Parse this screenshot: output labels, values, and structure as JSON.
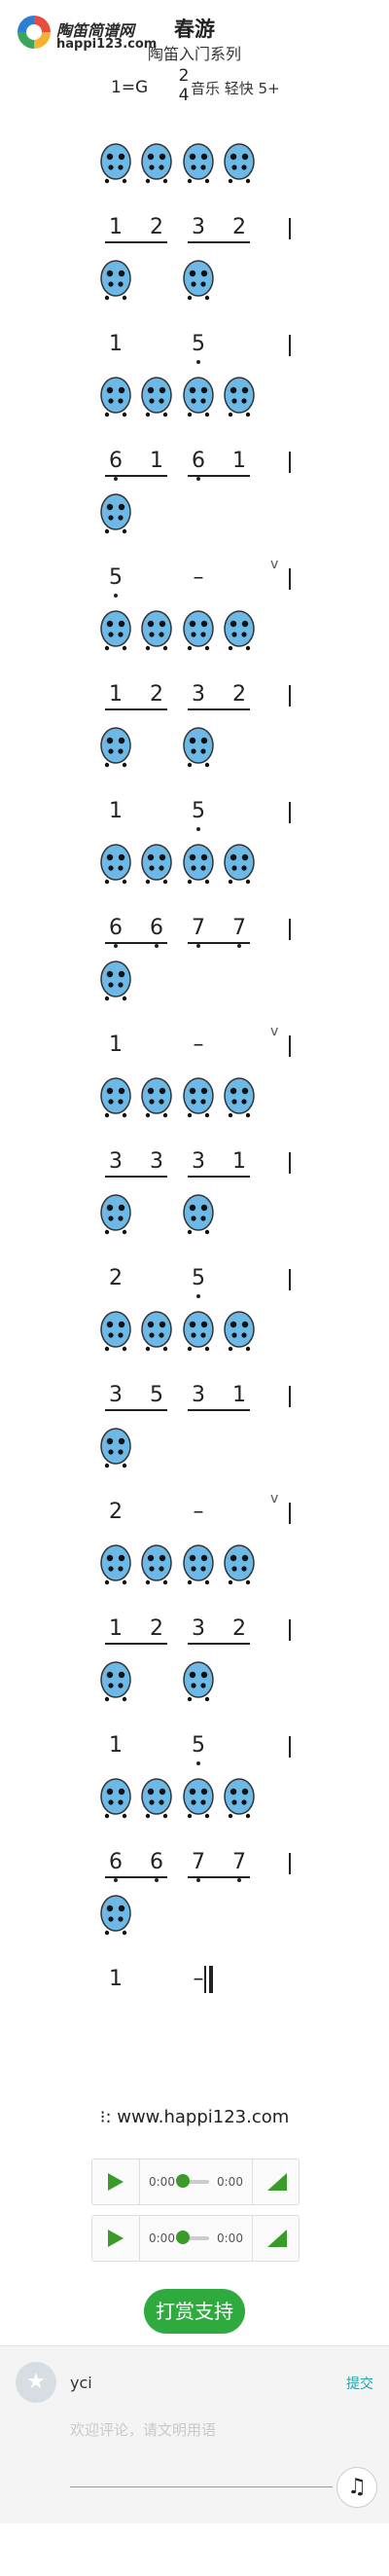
{
  "header": {
    "logo_name": "陶笛简谱网",
    "logo_url": "happi123.com",
    "title": "春游",
    "subtitle": "陶笛入门系列",
    "key": "1=G",
    "meter_top": "2",
    "meter_bottom": "4",
    "tempo": "音乐 轻快 5+"
  },
  "site_text": ": www.happi123.com",
  "players": [
    {
      "time_current": "0:00",
      "time_total": "0:00",
      "progress": 0
    },
    {
      "time_current": "0:00",
      "time_total": "0:00",
      "progress": 0
    }
  ],
  "donate_label": "打赏支持",
  "comment": {
    "user": "yci",
    "submit_label": "提交",
    "placeholder": "欢迎评论，请文明用语"
  },
  "colors": {
    "accent_green": "#2faa3f",
    "ocarina_blue": "#6cb8e6",
    "link_teal": "#2a9fa3"
  },
  "score_rows": [
    {
      "fingerings": 4,
      "notes": [
        "1",
        "2",
        "3",
        "2"
      ],
      "underlines": [
        [
          0,
          1
        ],
        [
          2,
          3
        ]
      ],
      "dots_below": [],
      "barline": "single"
    },
    {
      "fingerings": 2,
      "notes": [
        "1",
        "5"
      ],
      "underlines": [],
      "dots_below": [
        1
      ],
      "barline": "single"
    },
    {
      "fingerings": 4,
      "notes": [
        "6",
        "1",
        "6",
        "1"
      ],
      "underlines": [
        [
          0,
          1
        ],
        [
          2,
          3
        ]
      ],
      "dots_below": [
        0,
        2
      ],
      "barline": "single"
    },
    {
      "fingerings": 1,
      "notes": [
        "5",
        "–"
      ],
      "underlines": [],
      "dots_below": [
        0
      ],
      "barline": "single",
      "breath": "v"
    },
    {
      "fingerings": 4,
      "notes": [
        "1",
        "2",
        "3",
        "2"
      ],
      "underlines": [
        [
          0,
          1
        ],
        [
          2,
          3
        ]
      ],
      "dots_below": [],
      "barline": "single"
    },
    {
      "fingerings": 2,
      "notes": [
        "1",
        "5"
      ],
      "underlines": [],
      "dots_below": [
        1
      ],
      "barline": "single"
    },
    {
      "fingerings": 4,
      "notes": [
        "6",
        "6",
        "7",
        "7"
      ],
      "underlines": [
        [
          0,
          1
        ],
        [
          2,
          3
        ]
      ],
      "dots_below": [
        0,
        1,
        2,
        3
      ],
      "barline": "single"
    },
    {
      "fingerings": 1,
      "notes": [
        "1",
        "–"
      ],
      "underlines": [],
      "dots_below": [],
      "barline": "single",
      "breath": "v"
    },
    {
      "fingerings": 4,
      "notes": [
        "3",
        "3",
        "3",
        "1"
      ],
      "underlines": [
        [
          0,
          1
        ],
        [
          2,
          3
        ]
      ],
      "dots_below": [],
      "barline": "single"
    },
    {
      "fingerings": 2,
      "notes": [
        "2",
        "5"
      ],
      "underlines": [],
      "dots_below": [
        1
      ],
      "barline": "single"
    },
    {
      "fingerings": 4,
      "notes": [
        "3",
        "5",
        "3",
        "1"
      ],
      "underlines": [
        [
          0,
          1
        ],
        [
          2,
          3
        ]
      ],
      "dots_below": [],
      "barline": "single"
    },
    {
      "fingerings": 1,
      "notes": [
        "2",
        "–"
      ],
      "underlines": [],
      "dots_below": [],
      "barline": "single",
      "breath": "v"
    },
    {
      "fingerings": 4,
      "notes": [
        "1",
        "2",
        "3",
        "2"
      ],
      "underlines": [
        [
          0,
          1
        ],
        [
          2,
          3
        ]
      ],
      "dots_below": [],
      "barline": "single"
    },
    {
      "fingerings": 2,
      "notes": [
        "1",
        "5"
      ],
      "underlines": [],
      "dots_below": [
        1
      ],
      "barline": "single"
    },
    {
      "fingerings": 4,
      "notes": [
        "6",
        "6",
        "7",
        "7"
      ],
      "underlines": [
        [
          0,
          1
        ],
        [
          2,
          3
        ]
      ],
      "dots_below": [
        0,
        1,
        2,
        3
      ],
      "barline": "single"
    },
    {
      "fingerings": 1,
      "notes": [
        "1",
        "–"
      ],
      "underlines": [],
      "dots_below": [],
      "barline": "double"
    }
  ]
}
